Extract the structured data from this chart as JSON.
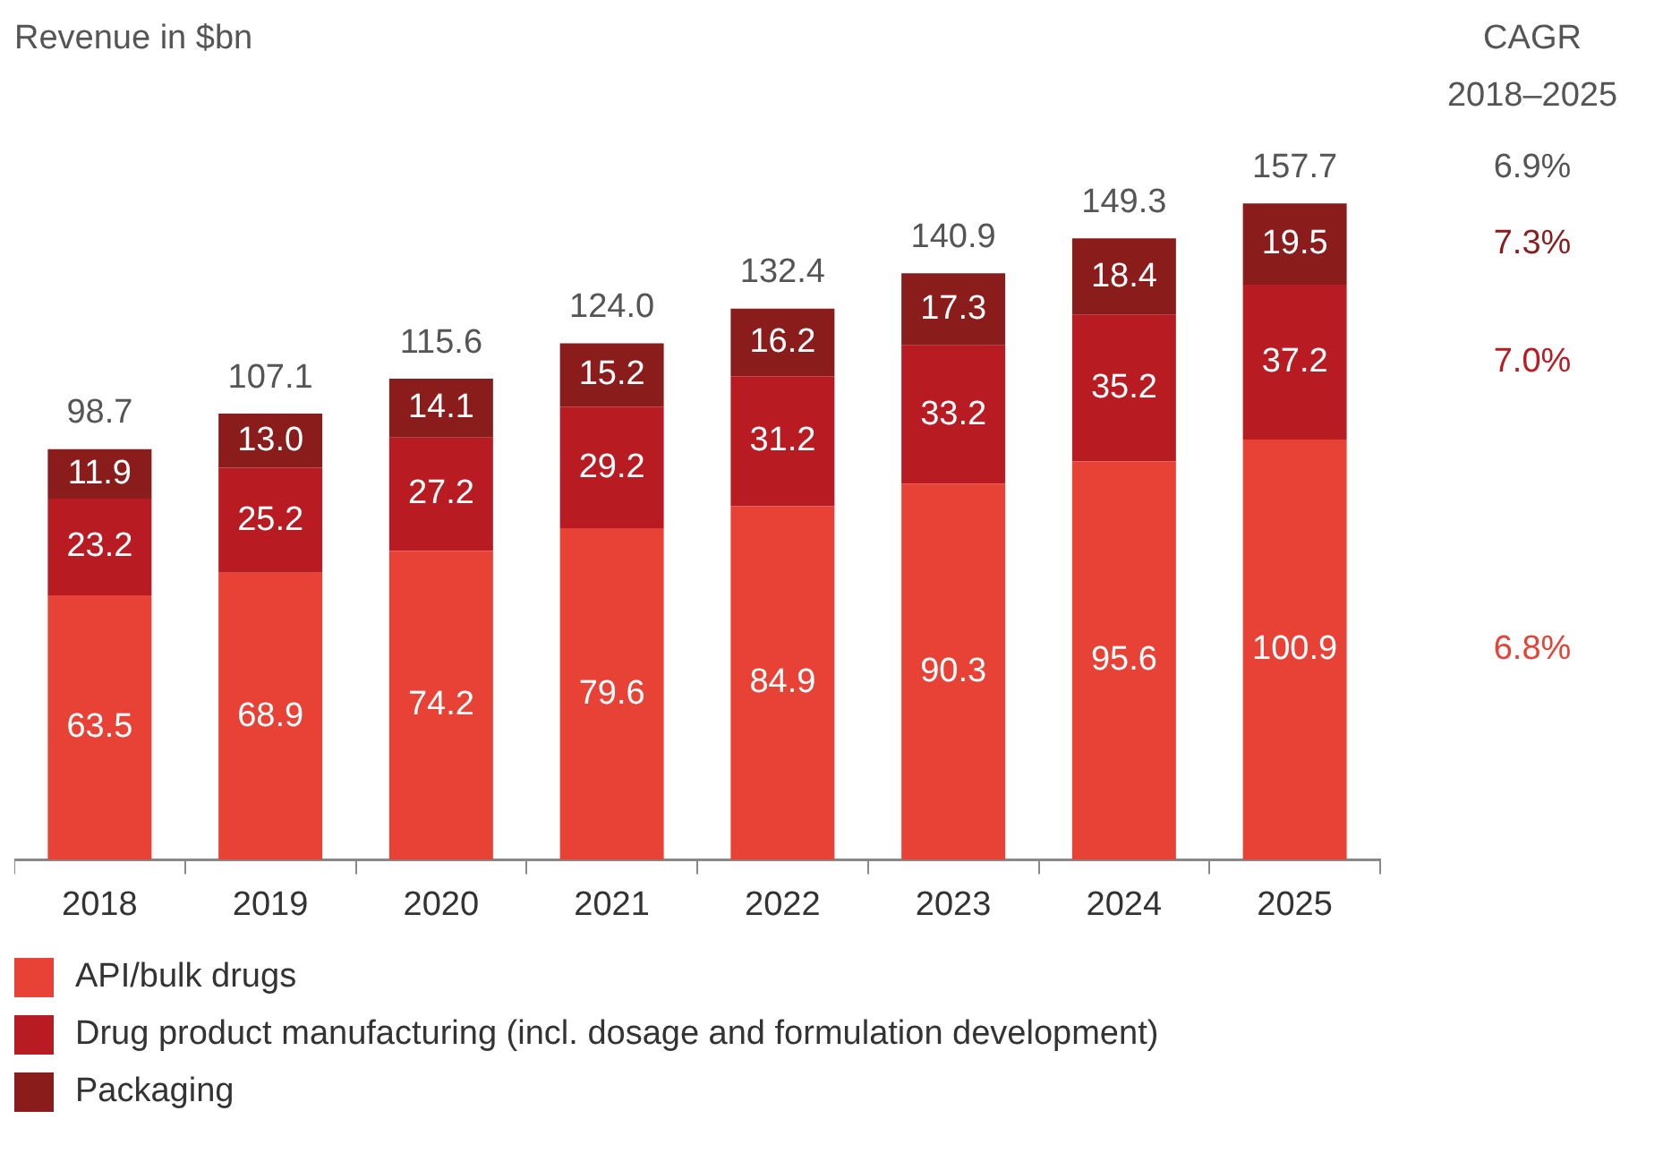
{
  "chart_data": {
    "type": "bar",
    "stacked": true,
    "ylabel": "Revenue in $bn",
    "categories": [
      "2018",
      "2019",
      "2020",
      "2021",
      "2022",
      "2023",
      "2024",
      "2025"
    ],
    "series": [
      {
        "name": "API/bulk drugs",
        "color": "#e84236",
        "values": [
          63.5,
          68.9,
          74.2,
          79.6,
          84.9,
          90.3,
          95.6,
          100.9
        ]
      },
      {
        "name": "Drug product manufacturing (incl. dosage and formulation development)",
        "color": "#b81c22",
        "values": [
          23.2,
          25.2,
          27.2,
          29.2,
          31.2,
          33.2,
          35.2,
          37.2
        ]
      },
      {
        "name": "Packaging",
        "color": "#8a1c1c",
        "values": [
          11.9,
          13.0,
          14.1,
          15.2,
          16.2,
          17.3,
          18.4,
          19.5
        ],
        "value_labels": [
          "11.9",
          "13.0",
          "14.1",
          "15.2",
          "16.2",
          "17.3",
          "18.4",
          "19.5"
        ]
      }
    ],
    "totals": [
      "98.7",
      "107.1",
      "115.6",
      "124.0",
      "132.4",
      "140.9",
      "149.3",
      "157.7"
    ],
    "data_labels": true,
    "legend": "bottom",
    "annotations": [
      "CAGR\n2018–2025",
      "6.9%",
      "6.8%",
      "7.0%",
      "7.3%"
    ]
  }
}
